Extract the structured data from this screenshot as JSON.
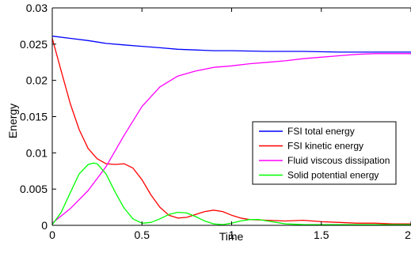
{
  "chart_data": {
    "type": "line",
    "title": "",
    "xlabel": "Time",
    "ylabel": "Energy",
    "xlim": [
      0,
      2
    ],
    "ylim": [
      0,
      0.03
    ],
    "xticks": [
      0,
      0.5,
      1,
      1.5,
      2
    ],
    "xtick_labels": [
      "0",
      "0.5",
      "1",
      "1.5",
      "2"
    ],
    "yticks": [
      0,
      0.005,
      0.01,
      0.015,
      0.02,
      0.025,
      0.03
    ],
    "ytick_labels": [
      "0",
      "0.005",
      "0.01",
      "0.015",
      "0.02",
      "0.025",
      "0.03"
    ],
    "grid": false,
    "legend_position": "middle-right",
    "series": [
      {
        "name": "FSI total energy",
        "color": "#0000ff",
        "x": [
          0,
          0.1,
          0.2,
          0.3,
          0.4,
          0.5,
          0.6,
          0.7,
          0.8,
          0.9,
          1.0,
          1.2,
          1.4,
          1.6,
          1.8,
          2.0
        ],
        "y": [
          0.0261,
          0.0258,
          0.0255,
          0.0251,
          0.0249,
          0.0247,
          0.0245,
          0.0243,
          0.0242,
          0.0241,
          0.0241,
          0.024,
          0.024,
          0.0239,
          0.0239,
          0.0239
        ]
      },
      {
        "name": "FSI  kinetic energy",
        "color": "#ff0000",
        "x": [
          0,
          0.05,
          0.1,
          0.15,
          0.2,
          0.25,
          0.3,
          0.35,
          0.4,
          0.45,
          0.5,
          0.55,
          0.6,
          0.65,
          0.7,
          0.75,
          0.8,
          0.85,
          0.9,
          0.95,
          1.0,
          1.05,
          1.1,
          1.2,
          1.3,
          1.4,
          1.5,
          1.6,
          1.7,
          1.8,
          1.9,
          2.0
        ],
        "y": [
          0.0258,
          0.0213,
          0.0168,
          0.0132,
          0.0106,
          0.0092,
          0.0085,
          0.0084,
          0.0085,
          0.0079,
          0.0063,
          0.0042,
          0.0025,
          0.0014,
          0.001,
          0.0011,
          0.0015,
          0.0019,
          0.0021,
          0.0019,
          0.0014,
          0.001,
          0.0008,
          0.0007,
          0.0006,
          0.0007,
          0.0005,
          0.0004,
          0.0003,
          0.0003,
          0.0002,
          0.0002
        ]
      },
      {
        "name": "Fluid viscous dissipation",
        "color": "#ff00ff",
        "x": [
          0,
          0.1,
          0.2,
          0.3,
          0.4,
          0.5,
          0.6,
          0.7,
          0.8,
          0.9,
          1.0,
          1.1,
          1.2,
          1.3,
          1.4,
          1.5,
          1.6,
          1.7,
          1.8,
          1.9,
          2.0
        ],
        "y": [
          0.0003,
          0.0023,
          0.0048,
          0.0081,
          0.0124,
          0.0164,
          0.0191,
          0.0206,
          0.0213,
          0.0218,
          0.022,
          0.0223,
          0.0225,
          0.0227,
          0.023,
          0.0232,
          0.0234,
          0.0236,
          0.0237,
          0.0237,
          0.0237
        ]
      },
      {
        "name": "Solid potential energy",
        "color": "#00ff00",
        "x": [
          0,
          0.05,
          0.1,
          0.15,
          0.2,
          0.23,
          0.25,
          0.3,
          0.35,
          0.4,
          0.45,
          0.5,
          0.55,
          0.6,
          0.65,
          0.7,
          0.75,
          0.8,
          0.85,
          0.9,
          0.95,
          1.0,
          1.05,
          1.1,
          1.15,
          1.2,
          1.25,
          1.3,
          1.4,
          1.5,
          1.6,
          1.7,
          1.8,
          1.9,
          2.0
        ],
        "y": [
          0.0001,
          0.0018,
          0.0045,
          0.0071,
          0.0084,
          0.0086,
          0.0085,
          0.0071,
          0.0046,
          0.0024,
          0.0009,
          0.0003,
          0.0004,
          0.0009,
          0.0015,
          0.0018,
          0.0017,
          0.0012,
          0.0006,
          0.0002,
          0.0001,
          0.0003,
          0.0006,
          0.0008,
          0.0008,
          0.0006,
          0.0004,
          0.0002,
          0.0001,
          0.0001,
          0.0001,
          0.0001,
          0.0001,
          0.0001,
          0.0001
        ]
      }
    ]
  }
}
